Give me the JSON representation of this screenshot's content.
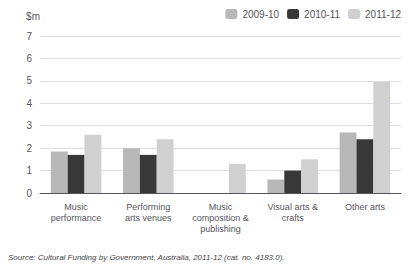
{
  "chart_data": {
    "type": "bar",
    "ylabel": "$m",
    "categories": [
      "Music\nperformance",
      "Performing\narts venues",
      "Music\ncomposition &\npublishing",
      "Visual arts &\ncrafts",
      "Other arts"
    ],
    "series": [
      {
        "name": "2009-10",
        "color": "#b8b8b8",
        "values": [
          1.85,
          2.0,
          0.0,
          0.6,
          2.7
        ]
      },
      {
        "name": "2010-11",
        "color": "#383838",
        "values": [
          1.7,
          1.7,
          0.0,
          1.0,
          2.4
        ]
      },
      {
        "name": "2011-12",
        "color": "#d0d0d0",
        "values": [
          2.6,
          2.4,
          1.3,
          1.5,
          4.95
        ]
      }
    ],
    "ylim": [
      0,
      7
    ],
    "yticks": [
      0,
      1,
      2,
      3,
      4,
      5,
      6,
      7
    ],
    "grid": true,
    "legend": "upper right",
    "annotation": "Source: Cultural Funding by Government, Australia, 2011-12 (cat. no. 4183.0)."
  }
}
